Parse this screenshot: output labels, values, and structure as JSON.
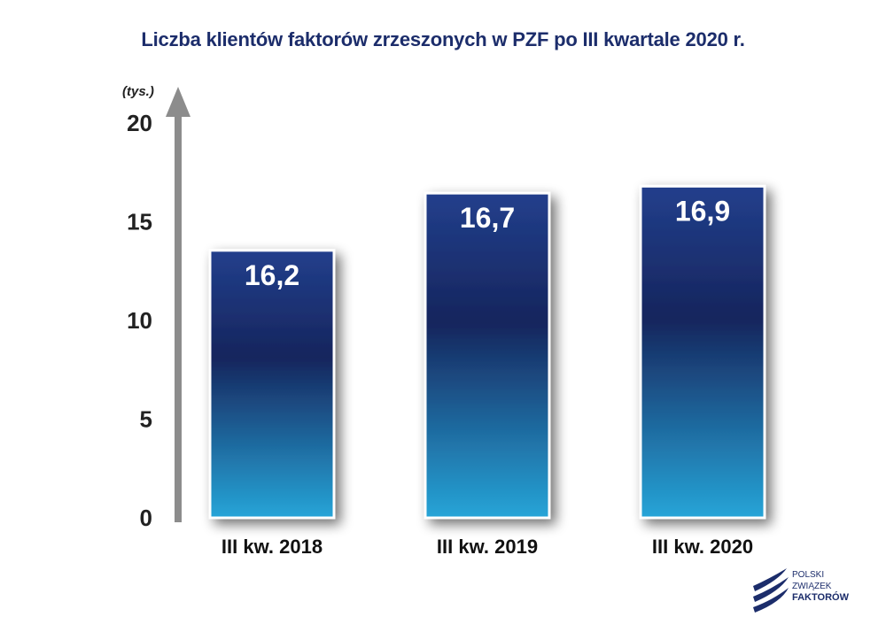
{
  "colors": {
    "title": "#1c2d6b",
    "bar_top": "#223f8c",
    "bar_mid": "#16255d",
    "bar_bottom": "#26a5d8",
    "axis": "#8c8c8c",
    "logo": "#1c2d6b"
  },
  "chart_data": {
    "type": "bar",
    "title": "Liczba klientów faktorów zrzeszonych w PZF po III kwartale 2020 r.",
    "ylabel": "(tys.)",
    "xlabel": "",
    "categories": [
      "III kw. 2018",
      "III kw. 2019",
      "III kw. 2020"
    ],
    "values": [
      16.2,
      16.7,
      16.9
    ],
    "value_labels": [
      "16,2",
      "16,7",
      "16,9"
    ],
    "yticks": [
      "0",
      "5",
      "10",
      "15",
      "20"
    ],
    "ylim": [
      0,
      20
    ],
    "grid": false,
    "legend": "none"
  },
  "logo": {
    "line1": "POLSKI",
    "line2": "ZWIĄZEK",
    "line3": "FAKTORÓW"
  }
}
